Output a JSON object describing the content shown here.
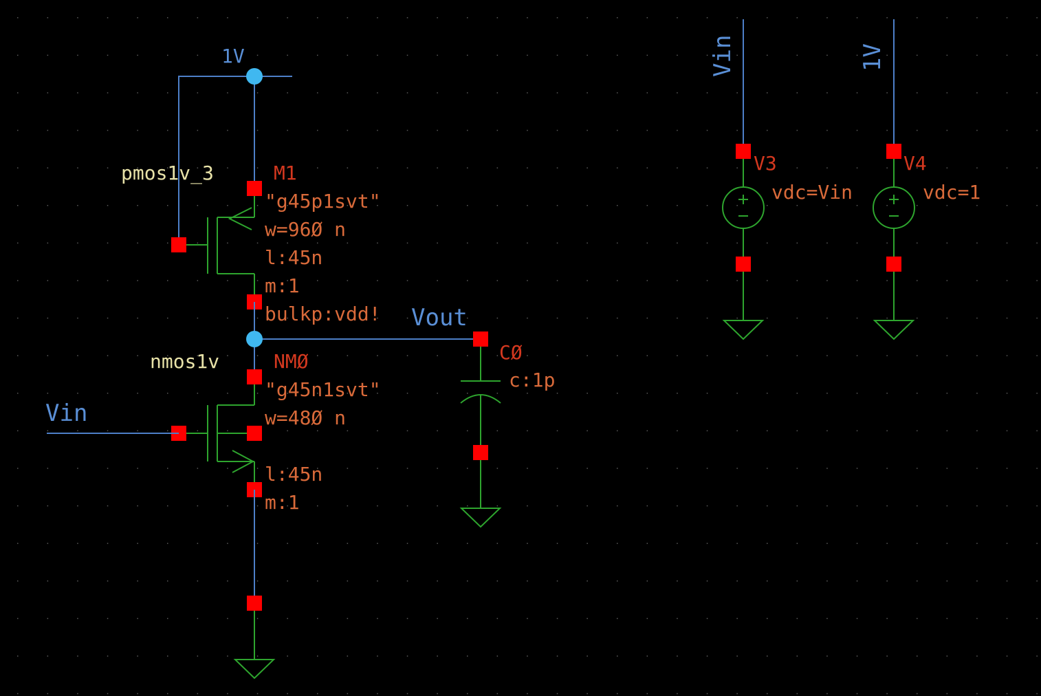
{
  "nets": {
    "vdd_label": "1V",
    "vout_label": "Vout",
    "vin_label": "Vin",
    "src_vin_label": "Vin",
    "src_vdd_label": "1V"
  },
  "pmos": {
    "cell": "pmos1v_3",
    "name": "M1",
    "model": "\"g45p1svt\"",
    "w": "w=96Ø n",
    "l": "l:45n",
    "m": "m:1",
    "bulk": "bulkp:vdd!"
  },
  "nmos": {
    "cell": "nmos1v",
    "name": "NMØ",
    "model": "\"g45n1svt\"",
    "w": "w=48Ø n",
    "l": "l:45n",
    "m": "m:1"
  },
  "cap": {
    "name": "CØ",
    "value": "c:1p"
  },
  "v3": {
    "name": "V3",
    "value": "vdc=Vin"
  },
  "v4": {
    "name": "V4",
    "value": "vdc=1"
  },
  "colors": {
    "background": "#000000",
    "wire_blue": "#4d7fc8",
    "symbol_green": "#2ea52e",
    "pin_red": "#ff0000",
    "junction": "#40b8f0"
  }
}
